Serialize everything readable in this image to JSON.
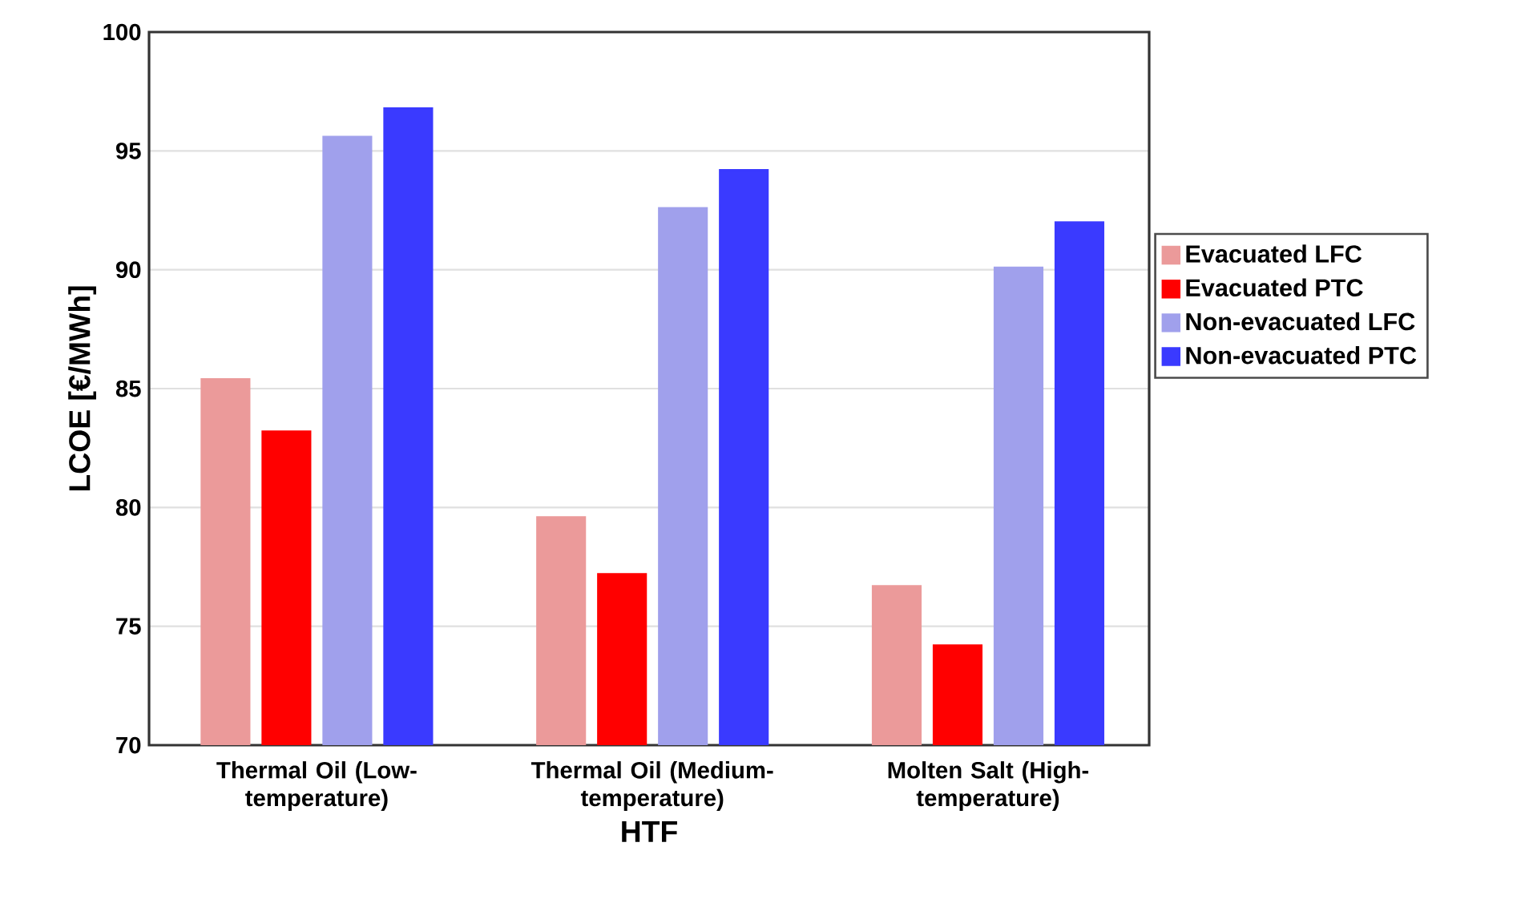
{
  "chart_data": {
    "type": "bar",
    "xlabel": "HTF",
    "ylabel": "LCOE [€/MWh]",
    "categories": [
      "Thermal Oil (Low-temperature)",
      "Thermal Oil (Medium-temperature)",
      "Molten Salt (High-temperature)"
    ],
    "series": [
      {
        "name": "Evacuated LFC",
        "color": "#eb9a9a",
        "values": [
          85.4,
          79.6,
          76.7
        ]
      },
      {
        "name": "Evacuated PTC",
        "color": "#ff0000",
        "values": [
          83.2,
          77.2,
          74.2
        ]
      },
      {
        "name": "Non-evacuated LFC",
        "color": "#a0a0ec",
        "values": [
          95.6,
          92.6,
          90.1
        ]
      },
      {
        "name": "Non-evacuated PTC",
        "color": "#3a3aff",
        "values": [
          96.8,
          94.2,
          92.0
        ]
      }
    ],
    "ylim": [
      70,
      100
    ],
    "yticks": [
      70,
      75,
      80,
      85,
      90,
      95,
      100
    ],
    "grid": "y",
    "legend": "right"
  }
}
